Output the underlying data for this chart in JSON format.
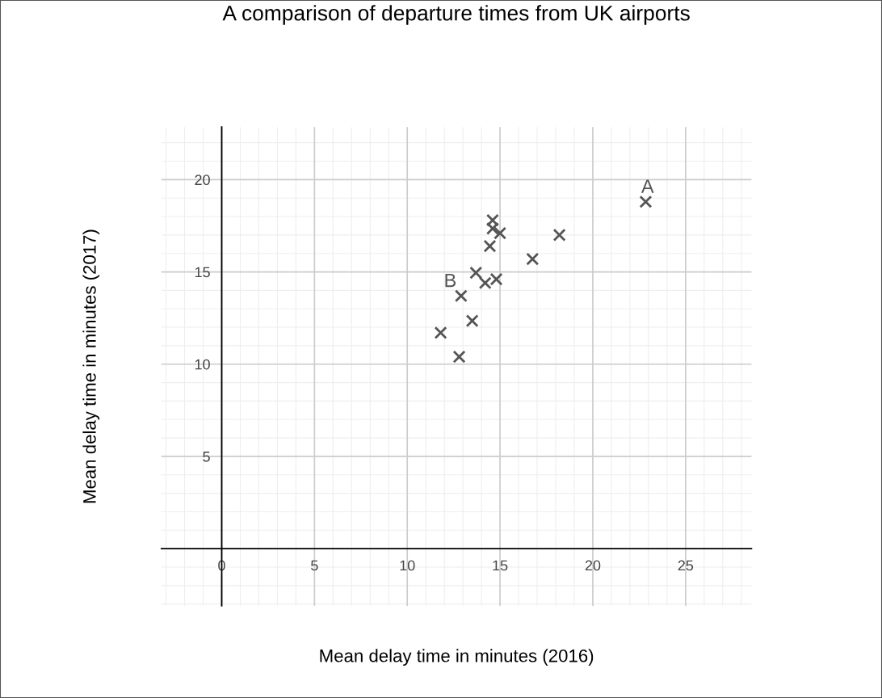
{
  "chart_data": {
    "type": "scatter",
    "title": "A comparison of departure times from UK airports",
    "xlabel": "Mean delay time in minutes (2016)",
    "ylabel": "Mean delay time in minutes (2017)",
    "x": [
      22.85,
      18.2,
      16.75,
      14.6,
      14.6,
      15.0,
      14.45,
      13.7,
      14.2,
      14.8,
      12.9,
      13.5,
      11.8,
      12.8
    ],
    "series": [
      {
        "color": "#555555",
        "values": [
          18.8,
          17.0,
          15.7,
          17.8,
          17.35,
          17.1,
          16.4,
          14.95,
          14.4,
          14.6,
          13.7,
          12.35,
          11.7,
          10.4
        ]
      }
    ],
    "marker": "cross",
    "xlim": [
      -3.25,
      28.55
    ],
    "ylim": [
      -3.1,
      22.85
    ],
    "xticks": [
      0,
      5,
      10,
      15,
      20,
      25
    ],
    "yticks": [
      5,
      10,
      15,
      20
    ],
    "grid": true,
    "legend": false,
    "annotations": [
      {
        "text": "A",
        "x": 22.85,
        "y": 18.8
      },
      {
        "text": "B",
        "x": 12.9,
        "y": 13.7
      }
    ]
  }
}
